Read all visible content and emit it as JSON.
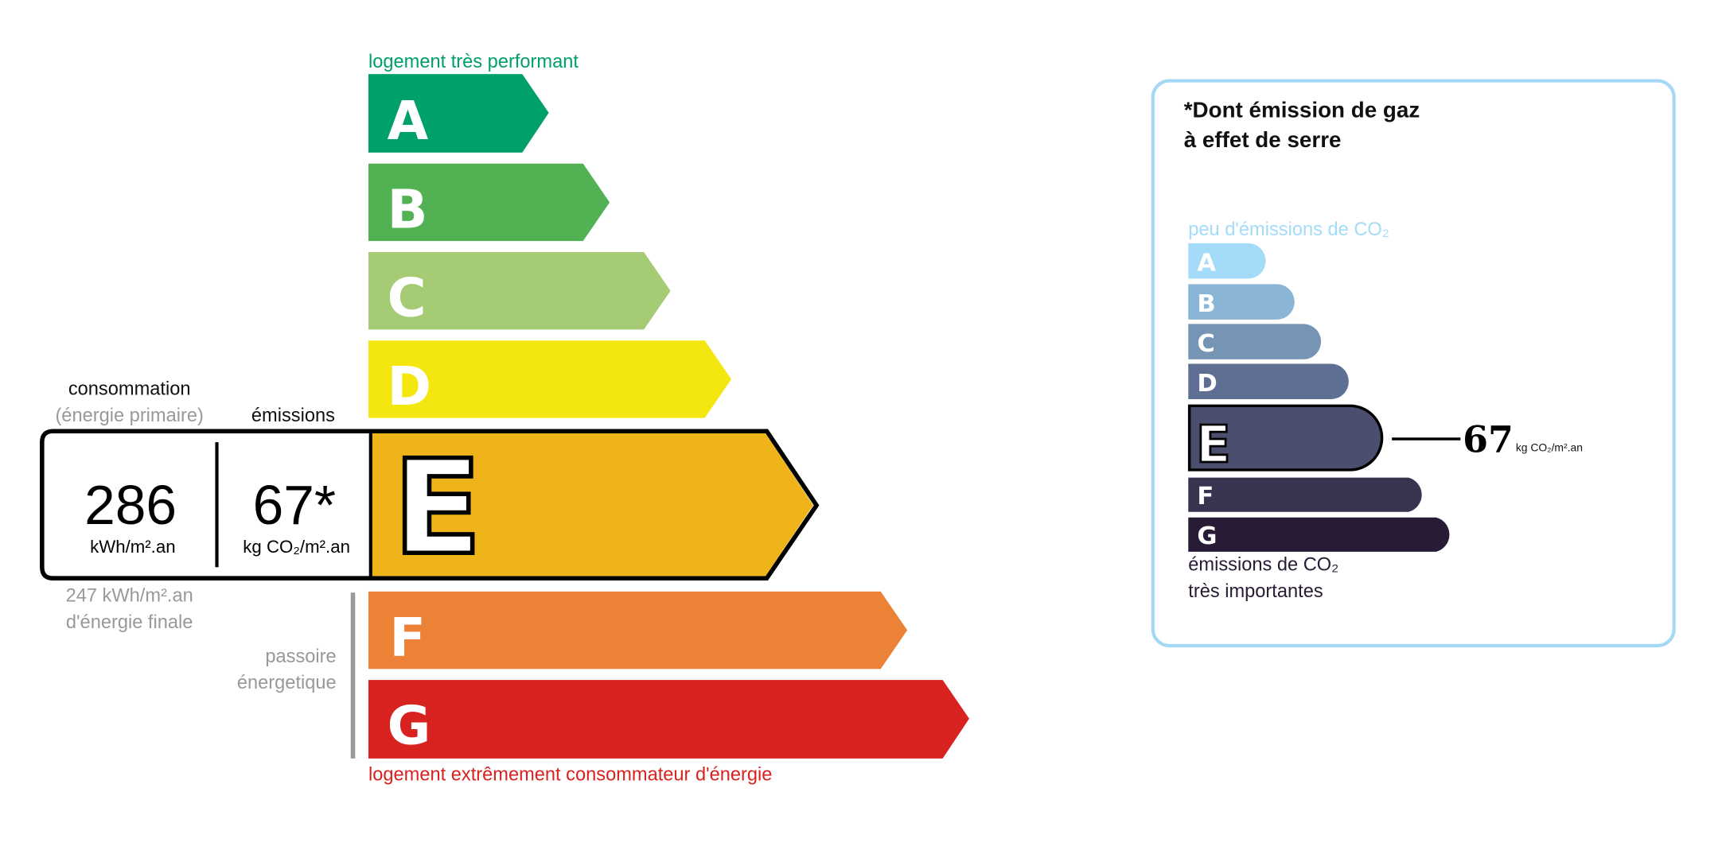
{
  "dpe": {
    "top_label": "logement très performant",
    "bottom_label": "logement extrêmement consommateur d'énergie",
    "classes": [
      {
        "letter": "A",
        "color": "#00a06a"
      },
      {
        "letter": "B",
        "color": "#52b153"
      },
      {
        "letter": "C",
        "color": "#a5cc74"
      },
      {
        "letter": "D",
        "color": "#f4e70f"
      },
      {
        "letter": "E",
        "color": "#f0b41b"
      },
      {
        "letter": "F",
        "color": "#eb8235"
      },
      {
        "letter": "G",
        "color": "#d7221f"
      }
    ],
    "current_class": "E",
    "consumption_header": "consommation",
    "consumption_subheader": "(énergie primaire)",
    "emissions_header": "émissions",
    "consumption_value": "286",
    "consumption_unit": "kWh/m².an",
    "emissions_value": "67*",
    "emissions_unit": "kg CO₂/m².an",
    "final_energy_line1": "247 kWh/m².an",
    "final_energy_line2": "d'énergie finale",
    "passoire_line1": "passoire",
    "passoire_line2": "énergetique"
  },
  "ges": {
    "title_line1": "*Dont émission de gaz",
    "title_line2": "à effet de serre",
    "top_label": "peu d'émissions de CO₂",
    "bottom_label_line1": "émissions de CO₂",
    "bottom_label_line2": "très importantes",
    "classes": [
      {
        "letter": "A",
        "color": "#a4dbf8"
      },
      {
        "letter": "B",
        "color": "#8ab5d6"
      },
      {
        "letter": "C",
        "color": "#7695b5"
      },
      {
        "letter": "D",
        "color": "#5f6f93"
      },
      {
        "letter": "E",
        "color": "#4b4e6e"
      },
      {
        "letter": "F",
        "color": "#383450"
      },
      {
        "letter": "G",
        "color": "#281b35"
      }
    ],
    "current_class": "E",
    "value": "67",
    "unit": "kg CO₂/m².an",
    "border_color": "#a5d8f5"
  }
}
